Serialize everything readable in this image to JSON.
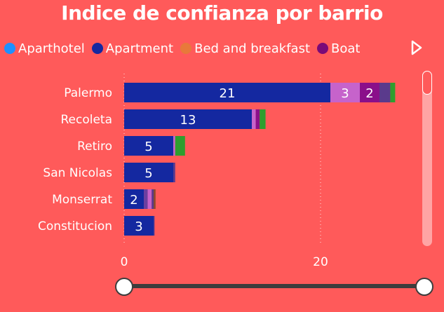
{
  "chart_data": {
    "type": "bar",
    "orientation": "horizontal",
    "stacked": true,
    "title": "Indice de confianza por barrio",
    "categories": [
      "Palermo",
      "Recoleta",
      "Retiro",
      "San Nicolas",
      "Monserrat",
      "Constitucion"
    ],
    "series": [
      {
        "name": "Aparthotel",
        "color": "#1E90FF",
        "values": [
          0,
          0,
          0,
          0,
          0,
          0
        ]
      },
      {
        "name": "Apartment",
        "color": "#1428A0",
        "values": [
          21,
          13,
          5,
          5,
          2,
          3
        ]
      },
      {
        "name": "Bed and breakfast",
        "color": "#E8793A",
        "values": [
          0,
          0,
          0,
          0,
          0,
          0
        ]
      },
      {
        "name": "Boat",
        "color": "#7A0A78",
        "values": [
          0,
          0,
          0,
          0,
          0,
          0
        ]
      },
      {
        "name": "",
        "color": "#6B3FA0",
        "values": [
          0,
          0,
          0,
          0,
          0.4,
          0
        ]
      },
      {
        "name": "",
        "color": "#C663CB",
        "values": [
          3,
          0.4,
          0.2,
          0,
          0.4,
          0
        ]
      },
      {
        "name": "",
        "color": "#8A0F8A",
        "values": [
          2,
          0.4,
          0,
          0,
          0,
          0
        ]
      },
      {
        "name": "",
        "color": "#5A3A8C",
        "values": [
          1.1,
          0,
          0,
          0.2,
          0.2,
          0.1
        ]
      },
      {
        "name": "",
        "color": "#8B4A2F",
        "values": [
          0,
          0,
          0,
          0,
          0.2,
          0
        ]
      },
      {
        "name": "",
        "color": "#2E9E2E",
        "values": [
          0.5,
          0.6,
          1.0,
          0,
          0,
          0
        ]
      }
    ],
    "data_labels": [
      [
        null,
        "21",
        null,
        null,
        null,
        "3",
        "2",
        null,
        null,
        null
      ],
      [
        null,
        "13",
        null,
        null,
        null,
        null,
        null,
        null,
        null,
        null
      ],
      [
        null,
        "5",
        null,
        null,
        null,
        null,
        null,
        null,
        null,
        null
      ],
      [
        null,
        "5",
        null,
        null,
        null,
        null,
        null,
        null,
        null,
        null
      ],
      [
        null,
        "2",
        null,
        null,
        null,
        null,
        null,
        null,
        null,
        null
      ],
      [
        null,
        "3",
        null,
        null,
        null,
        null,
        null,
        null,
        null,
        null
      ]
    ],
    "xlim": [
      0,
      30
    ],
    "xticks": [
      0,
      20
    ],
    "grid": true,
    "legend_position": "top"
  },
  "legend_labels": [
    "Aparthotel",
    "Apartment",
    "Bed and breakfast",
    "Boat"
  ],
  "axis_tick_color": "#ffffff"
}
